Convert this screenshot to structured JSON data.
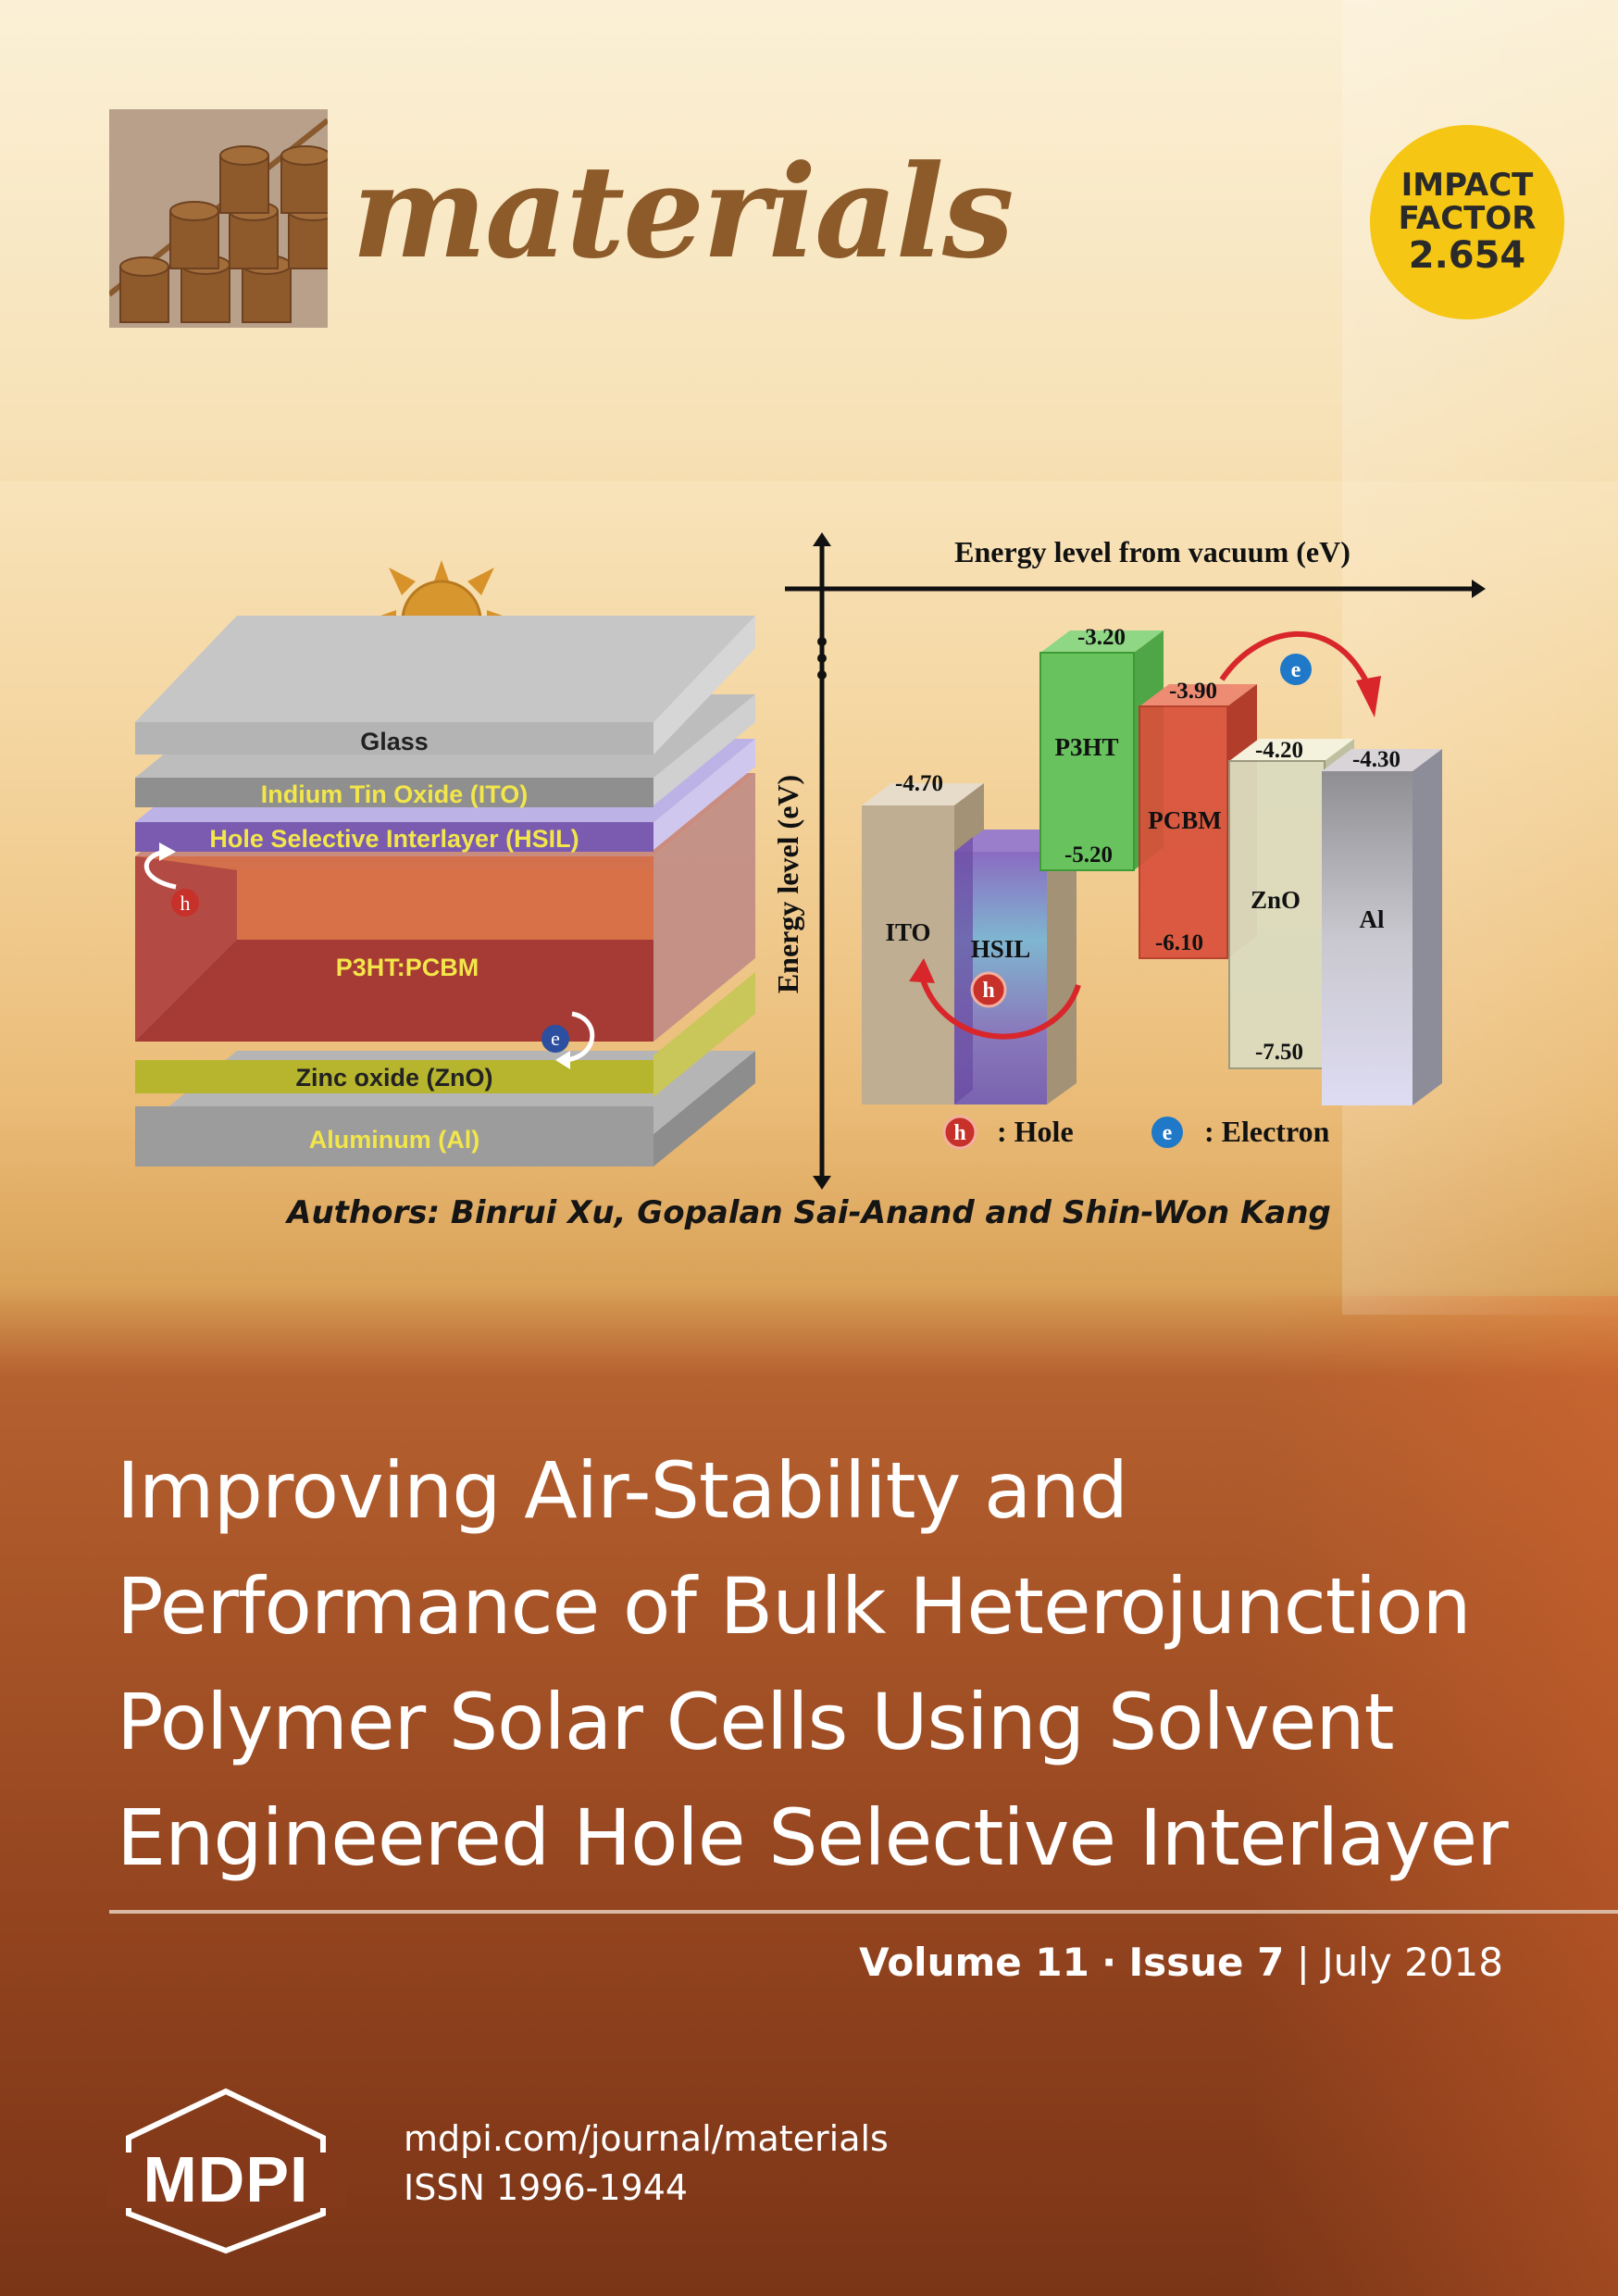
{
  "header": {
    "journal_name": "materials",
    "impact_factor": {
      "line1": "IMPACT",
      "line2": "FACTOR",
      "value": "2.654"
    }
  },
  "figure": {
    "device_layers": [
      "Glass",
      "Indium Tin Oxide (ITO)",
      "Hole Selective Interlayer (HSIL)",
      "P3HT:PCBM",
      "Zinc oxide (ZnO)",
      "Aluminum (Al)"
    ],
    "carrier_symbols": {
      "hole": "h",
      "electron": "e"
    },
    "energy_diagram": {
      "x_axis_label": "Energy level from vacuum (eV)",
      "y_axis_label": "Energy level (eV)",
      "materials": [
        {
          "name": "ITO",
          "top": "-4.70"
        },
        {
          "name": "HSIL"
        },
        {
          "name": "P3HT",
          "top": "-3.20",
          "bottom": "-5.20"
        },
        {
          "name": "PCBM",
          "top": "-3.90",
          "bottom": "-6.10"
        },
        {
          "name": "ZnO",
          "top": "-4.20",
          "bottom": "-7.50"
        },
        {
          "name": "Al",
          "top": "-4.30"
        }
      ],
      "legend": {
        "hole": ": Hole",
        "electron": ": Electron"
      }
    },
    "authors": "Authors: Binrui Xu, Gopalan Sai-Anand and Shin-Won Kang"
  },
  "article": {
    "title_lines": [
      "Improving Air-Stability and",
      "Performance of Bulk Heterojunction",
      "Polymer Solar Cells Using Solvent",
      "Engineered Hole Selective Interlayer"
    ]
  },
  "issue": {
    "volume": "Volume 11",
    "separator": "·",
    "issue": "Issue 7",
    "divider": "|",
    "date": "July 2018"
  },
  "footer": {
    "publisher": "MDPI",
    "url": "mdpi.com/journal/materials",
    "issn": "ISSN 1996-1944"
  },
  "colors": {
    "journal_brown": "#8d5b2a",
    "badge_yellow": "#f5c613",
    "hsil_purple": "#7a5bb0",
    "active_red": "#a63a34",
    "zno_yellow": "#b7b52e",
    "p3ht_green": "#68c35f",
    "pcbm_red": "#d9503a"
  }
}
